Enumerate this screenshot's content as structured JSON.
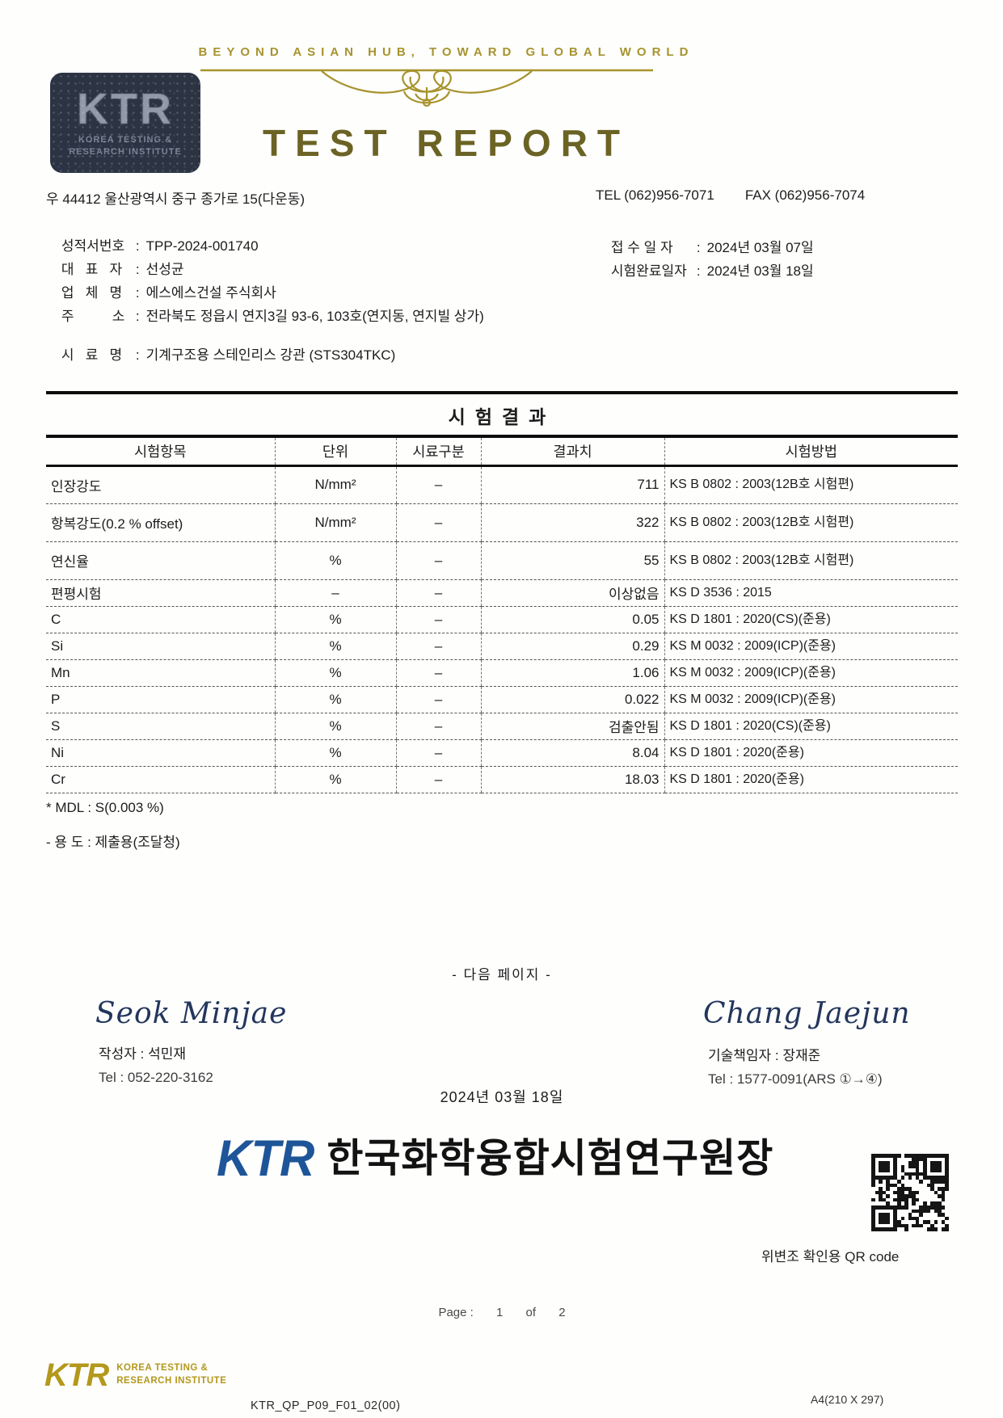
{
  "header": {
    "tagline": "BEYOND ASIAN HUB, TOWARD GLOBAL WORLD",
    "title": "TEST REPORT",
    "stamp": {
      "logo": "KTR",
      "line1": "KOREA TESTING &",
      "line2": "RESEARCH INSTITUTE"
    },
    "address": "우 44412 울산광역시 중구 종가로 15(다운동)",
    "tel": "TEL (062)956-7071",
    "fax": "FAX (062)956-7074"
  },
  "meta": {
    "left": [
      {
        "label": "성적서번호",
        "value": "TPP-2024-001740"
      },
      {
        "label": "대   표   자",
        "value": "선성균"
      },
      {
        "label": "업   체   명",
        "value": "에스에스건설 주식회사"
      },
      {
        "label": "주          소",
        "value": "전라북도 정읍시 연지3길 93-6, 103호(연지동, 연지빌 상가)"
      }
    ],
    "right": [
      {
        "label": "접 수 일 자",
        "value": "2024년 03월 07일"
      },
      {
        "label": "시험완료일자",
        "value": "2024년 03월 18일"
      }
    ],
    "sample": {
      "label": "시   료   명",
      "value": "기계구조용 스테인리스 강관 (STS304TKC)"
    }
  },
  "results": {
    "title": "시험결과",
    "columns": [
      "시험항목",
      "단위",
      "시료구분",
      "결과치",
      "시험방법"
    ],
    "rows": [
      [
        "인장강도",
        "N/mm²",
        "–",
        "711",
        "KS B 0802 : 2003(12B호 시험편)"
      ],
      [
        "항복강도(0.2 % offset)",
        "N/mm²",
        "–",
        "322",
        "KS B 0802 : 2003(12B호 시험편)"
      ],
      [
        "연신율",
        "%",
        "–",
        "55",
        "KS B 0802 : 2003(12B호 시험편)"
      ],
      [
        "편평시험",
        "–",
        "–",
        "이상없음",
        "KS D 3536 : 2015"
      ],
      [
        "C",
        "%",
        "–",
        "0.05",
        "KS D 1801 : 2020(CS)(준용)"
      ],
      [
        "Si",
        "%",
        "–",
        "0.29",
        "KS M 0032 : 2009(ICP)(준용)"
      ],
      [
        "Mn",
        "%",
        "–",
        "1.06",
        "KS M 0032 : 2009(ICP)(준용)"
      ],
      [
        "P",
        "%",
        "–",
        "0.022",
        "KS M 0032 : 2009(ICP)(준용)"
      ],
      [
        "S",
        "%",
        "–",
        "검출안됨",
        "KS D 1801 : 2020(CS)(준용)"
      ],
      [
        "Ni",
        "%",
        "–",
        "8.04",
        "KS D 1801 : 2020(준용)"
      ],
      [
        "Cr",
        "%",
        "–",
        "18.03",
        "KS D 1801 : 2020(준용)"
      ]
    ],
    "note_mdl": "* MDL : S(0.003 %)",
    "note_use": "- 용 도 :  제출용(조달청)"
  },
  "footer": {
    "next_page": "- 다음 페이지 -",
    "writer": {
      "signature": "Seok Minjae",
      "name_line": "작성자 : 석민재",
      "tel": "Tel : 052-220-3162"
    },
    "tech": {
      "signature": "Chang Jaejun",
      "name_line": "기술책임자 : 장재준",
      "tel": "Tel : 1577-0091(ARS ①→④)"
    },
    "date": "2024년 03월 18일",
    "org": {
      "logo": "KTR",
      "name": "한국화학융합시험연구원장"
    },
    "qr_caption": "위변조 확인용  QR code",
    "page": {
      "prefix": "Page :",
      "current": "1",
      "of": "of",
      "total": "2"
    },
    "bottom": {
      "logo": "KTR",
      "line1": "KOREA TESTING &",
      "line2": "RESEARCH INSTITUTE",
      "doc_code": "KTR_QP_P09_F01_02(00)",
      "paper": "A4(210 X 297)"
    }
  },
  "colors": {
    "gold_tagline": "#a7932d",
    "olive_title": "#6b6324",
    "stamp_navy": "#2c3444",
    "signature_navy": "#23365c",
    "ktr_blue": "#1e5598",
    "footer_gold": "#b3981c",
    "text": "#1c1c1c"
  }
}
